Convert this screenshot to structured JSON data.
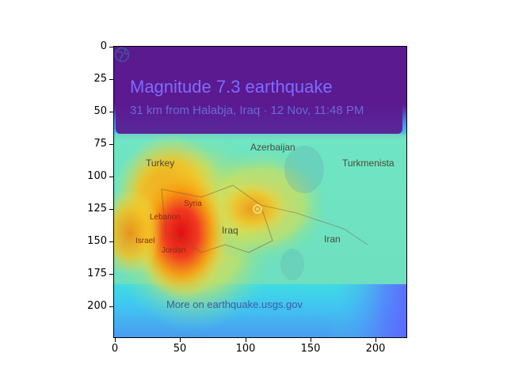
{
  "notification": {
    "title": "Magnitude 7.3 earthquake",
    "subtitle": "31 km from Halabja, Iraq · 12 Nov, 11:48 PM"
  },
  "map": {
    "labels": {
      "azerbaijan": "Azerbaijan",
      "turkey": "Turkey",
      "turkmenistan": "Turkmenista",
      "syria": "Syria",
      "lebanon": "Lebanon",
      "iraq": "Iraq",
      "israel": "Israel",
      "jordan": "Jordan",
      "iran": "Iran"
    },
    "footer_link": "More on earthquake.usgs.gov",
    "icons": [
      "globe-icon",
      "location-pin-icon"
    ]
  },
  "axes": {
    "y_ticks": [
      "0",
      "25",
      "50",
      "75",
      "100",
      "125",
      "150",
      "175",
      "200"
    ],
    "x_ticks": [
      "0",
      "50",
      "100",
      "150",
      "200"
    ]
  },
  "colors": {
    "heat_hot": "#e02020",
    "heat_warm": "#f5a000",
    "heat_mid": "#e8e050",
    "heat_cool": "#40e0e0",
    "heat_cold": "#5060ff"
  }
}
